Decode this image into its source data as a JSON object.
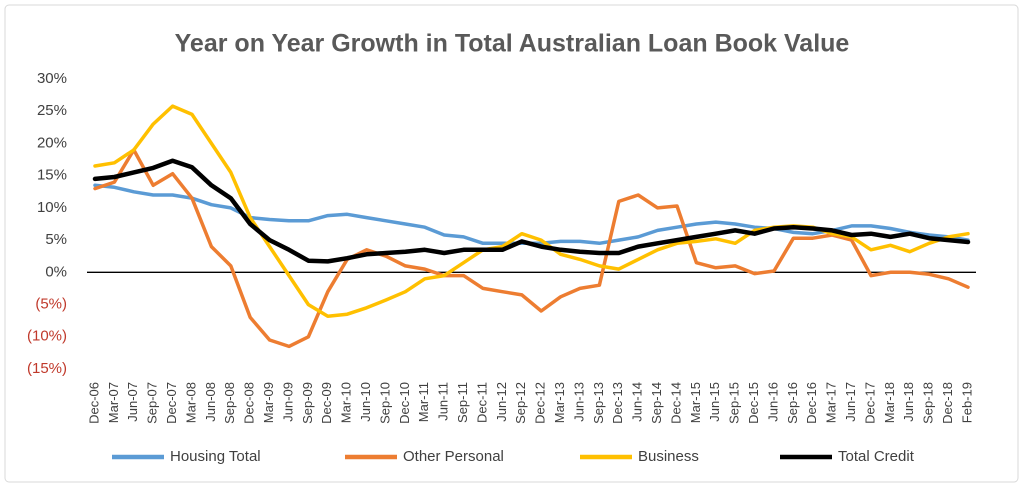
{
  "chart_data": {
    "type": "line",
    "title": "Year on Year Growth in Total Australian Loan Book Value",
    "categories": [
      "Dec-06",
      "Mar-07",
      "Jun-07",
      "Sep-07",
      "Dec-07",
      "Mar-08",
      "Jun-08",
      "Sep-08",
      "Dec-08",
      "Mar-09",
      "Jun-09",
      "Sep-09",
      "Dec-09",
      "Mar-10",
      "Jun-10",
      "Sep-10",
      "Dec-10",
      "Mar-11",
      "Jun-11",
      "Sep-11",
      "Dec-11",
      "Jun-12",
      "Sep-12",
      "Dec-12",
      "Mar-13",
      "Jun-13",
      "Sep-13",
      "Dec-13",
      "Jun-14",
      "Sep-14",
      "Dec-14",
      "Mar-15",
      "Jun-15",
      "Sep-15",
      "Dec-15",
      "Jun-16",
      "Sep-16",
      "Dec-16",
      "Mar-17",
      "Jun-17",
      "Dec-17",
      "Mar-18",
      "Jun-18",
      "Sep-18",
      "Dec-18",
      "Feb-19"
    ],
    "series": [
      {
        "name": "Housing Total",
        "color": "#5b9bd5",
        "values": [
          13.5,
          13.2,
          12.5,
          12,
          12,
          11.5,
          10.5,
          10,
          8.5,
          8.2,
          8,
          8,
          8.8,
          9,
          8.5,
          8,
          7.5,
          7,
          5.8,
          5.5,
          4.5,
          4.5,
          4.5,
          4.5,
          4.8,
          4.8,
          4.5,
          5,
          5.5,
          6.5,
          7,
          7.5,
          7.8,
          7.5,
          7,
          6.8,
          6.2,
          6,
          6.5,
          7.2,
          7.2,
          6.8,
          6.2,
          5.8,
          5.5,
          5
        ]
      },
      {
        "name": "Other Personal",
        "color": "#ed7d31",
        "values": [
          13,
          14,
          19,
          13.5,
          15.3,
          11.5,
          4,
          1,
          -7,
          -10.5,
          -11.5,
          -10,
          -3,
          2,
          3.5,
          2.5,
          1,
          0.5,
          -0.5,
          -0.5,
          -2.5,
          -3,
          -3.5,
          -6,
          -3.8,
          -2.5,
          -2,
          11,
          12,
          10,
          10.3,
          1.5,
          0.7,
          1,
          -0.2,
          0.2,
          5.3,
          5.3,
          5.8,
          5,
          -0.5,
          0,
          0,
          -0.3,
          -1,
          -2.3
        ]
      },
      {
        "name": "Business",
        "color": "#ffc000",
        "values": [
          16.5,
          17,
          19,
          23,
          25.8,
          24.5,
          20,
          15.5,
          8.5,
          4,
          -0.5,
          -5,
          -6.8,
          -6.5,
          -5.5,
          -4.3,
          -3,
          -1,
          -0.5,
          1.5,
          3.5,
          4,
          6,
          5,
          2.8,
          2,
          1,
          0.5,
          2,
          3.5,
          4.5,
          4.8,
          5.2,
          4.5,
          6.5,
          7,
          7.2,
          7,
          6,
          5.5,
          3.5,
          4.2,
          3.2,
          4.5,
          5.5,
          6
        ]
      },
      {
        "name": "Total Credit",
        "color": "#000000",
        "values": [
          14.5,
          14.8,
          15.5,
          16.2,
          17.3,
          16.3,
          13.5,
          11.5,
          7.5,
          5,
          3.5,
          1.8,
          1.7,
          2.2,
          2.8,
          3,
          3.2,
          3.5,
          3,
          3.5,
          3.5,
          3.5,
          4.8,
          4,
          3.5,
          3.2,
          3,
          3,
          4,
          4.5,
          5,
          5.5,
          6,
          6.5,
          6,
          6.8,
          7,
          6.8,
          6.5,
          5.8,
          6,
          5.5,
          6,
          5.3,
          5,
          4.7
        ]
      }
    ],
    "ylim": [
      -15,
      30
    ],
    "yticks": [
      {
        "value": -15,
        "label": "(15%)"
      },
      {
        "value": -10,
        "label": "(10%)"
      },
      {
        "value": -5,
        "label": "(5%)"
      },
      {
        "value": 0,
        "label": "0%"
      },
      {
        "value": 5,
        "label": "5%"
      },
      {
        "value": 10,
        "label": "10%"
      },
      {
        "value": 15,
        "label": "15%"
      },
      {
        "value": 20,
        "label": "20%"
      },
      {
        "value": 25,
        "label": "25%"
      },
      {
        "value": 30,
        "label": "30%"
      }
    ],
    "grid": false,
    "legend": "bottom"
  }
}
